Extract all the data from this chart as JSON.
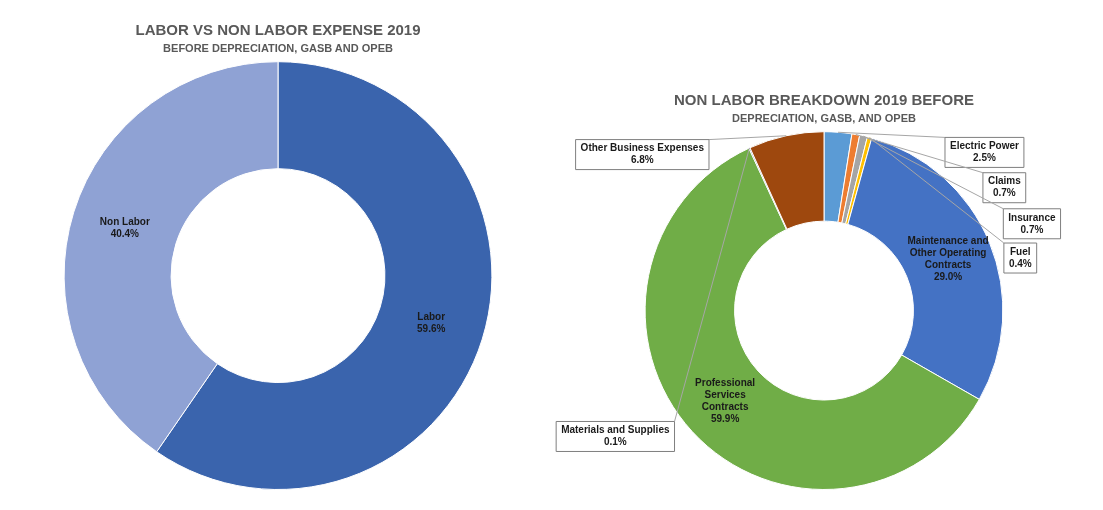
{
  "chart_data": [
    {
      "type": "donut",
      "title": "LABOR VS NON LABOR EXPENSE 2019",
      "subtitle": "BEFORE DEPRECIATION, GASB AND OPEB",
      "categories": [
        "Labor",
        "Non Labor"
      ],
      "values": [
        59.6,
        40.4
      ],
      "value_labels": [
        "59.6%",
        "40.4%"
      ],
      "colors": [
        "#3a64ad",
        "#8fa2d4"
      ],
      "legend": false
    },
    {
      "type": "donut",
      "title": "NON LABOR BREAKDOWN 2019 BEFORE",
      "subtitle": "DEPRECIATION, GASB, AND OPEB",
      "categories": [
        "Electric Power",
        "Claims",
        "Insurance",
        "Fuel",
        "Maintenance and Other Operating Contracts",
        "Professional Services Contracts",
        "Materials and Supplies",
        "Other Business Expenses"
      ],
      "values": [
        2.5,
        0.7,
        0.7,
        0.4,
        29.0,
        59.9,
        0.1,
        6.8
      ],
      "value_labels": [
        "2.5%",
        "0.7%",
        "0.7%",
        "0.4%",
        "29.0%",
        "59.9%",
        "0.1%",
        "6.8%"
      ],
      "colors": [
        "#5b9bd5",
        "#ed7d31",
        "#a5a5a5",
        "#ffc000",
        "#4472c4",
        "#70ad47",
        "#264478",
        "#9e480e"
      ],
      "legend": false
    }
  ]
}
